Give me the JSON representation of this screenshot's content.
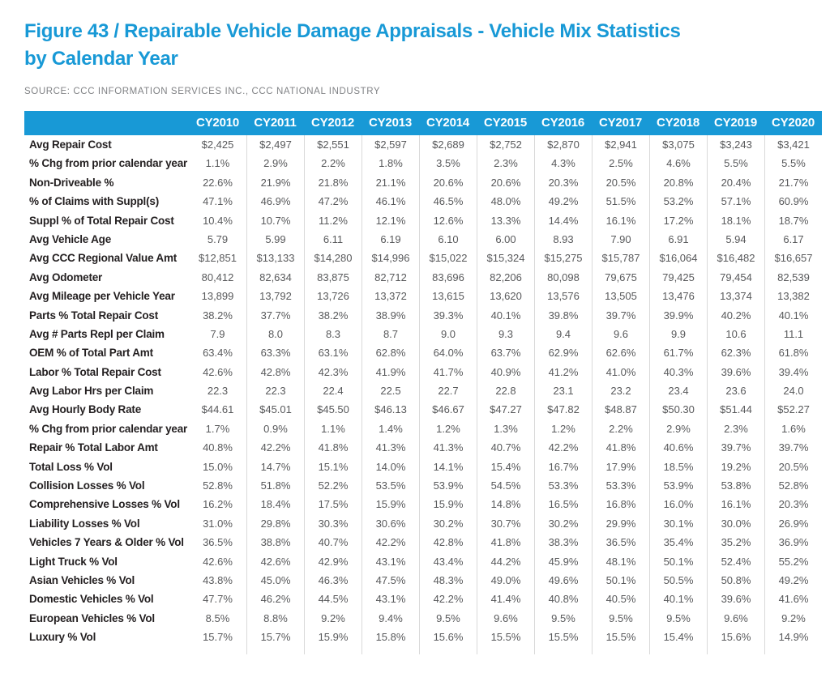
{
  "figure": {
    "title_line1": "Figure 43 / Repairable Vehicle Damage Appraisals - Vehicle Mix Statistics",
    "title_line2": "by Calendar Year",
    "source": "SOURCE: CCC INFORMATION SERVICES INC., CCC NATIONAL INDUSTRY"
  },
  "colors": {
    "accent_blue": "#1899D6",
    "label_text": "#231F20",
    "value_text": "#58595B",
    "divider": "#D9D9D9"
  },
  "chart_data": {
    "type": "table",
    "title": "Figure 43 / Repairable Vehicle Damage Appraisals - Vehicle Mix Statistics by Calendar Year",
    "source": "SOURCE: CCC INFORMATION SERVICES INC., CCC NATIONAL INDUSTRY",
    "columns": [
      "CY2010",
      "CY2011",
      "CY2012",
      "CY2013",
      "CY2014",
      "CY2015",
      "CY2016",
      "CY2017",
      "CY2018",
      "CY2019",
      "CY2020"
    ],
    "rows": [
      {
        "label": "Avg Repair Cost",
        "values": [
          "$2,425",
          "$2,497",
          "$2,551",
          "$2,597",
          "$2,689",
          "$2,752",
          "$2,870",
          "$2,941",
          "$3,075",
          "$3,243",
          "$3,421"
        ]
      },
      {
        "label": "% Chg from prior calendar year",
        "values": [
          "1.1%",
          "2.9%",
          "2.2%",
          "1.8%",
          "3.5%",
          "2.3%",
          "4.3%",
          "2.5%",
          "4.6%",
          "5.5%",
          "5.5%"
        ]
      },
      {
        "label": "Non-Driveable %",
        "values": [
          "22.6%",
          "21.9%",
          "21.8%",
          "21.1%",
          "20.6%",
          "20.6%",
          "20.3%",
          "20.5%",
          "20.8%",
          "20.4%",
          "21.7%"
        ]
      },
      {
        "label": "% of Claims with Suppl(s)",
        "values": [
          "47.1%",
          "46.9%",
          "47.2%",
          "46.1%",
          "46.5%",
          "48.0%",
          "49.2%",
          "51.5%",
          "53.2%",
          "57.1%",
          "60.9%"
        ]
      },
      {
        "label": "Suppl % of Total Repair Cost",
        "values": [
          "10.4%",
          "10.7%",
          "11.2%",
          "12.1%",
          "12.6%",
          "13.3%",
          "14.4%",
          "16.1%",
          "17.2%",
          "18.1%",
          "18.7%"
        ]
      },
      {
        "label": "Avg Vehicle Age",
        "values": [
          "5.79",
          "5.99",
          "6.11",
          "6.19",
          "6.10",
          "6.00",
          "8.93",
          "7.90",
          "6.91",
          "5.94",
          "6.17"
        ]
      },
      {
        "label": "Avg CCC Regional Value Amt",
        "values": [
          "$12,851",
          "$13,133",
          "$14,280",
          "$14,996",
          "$15,022",
          "$15,324",
          "$15,275",
          "$15,787",
          "$16,064",
          "$16,482",
          "$16,657"
        ]
      },
      {
        "label": "Avg Odometer",
        "values": [
          "80,412",
          "82,634",
          "83,875",
          "82,712",
          "83,696",
          "82,206",
          "80,098",
          "79,675",
          "79,425",
          "79,454",
          "82,539"
        ]
      },
      {
        "label": "Avg Mileage per Vehicle Year",
        "values": [
          "13,899",
          "13,792",
          "13,726",
          "13,372",
          "13,615",
          "13,620",
          "13,576",
          "13,505",
          "13,476",
          "13,374",
          "13,382"
        ]
      },
      {
        "label": "Parts % Total Repair Cost",
        "values": [
          "38.2%",
          "37.7%",
          "38.2%",
          "38.9%",
          "39.3%",
          "40.1%",
          "39.8%",
          "39.7%",
          "39.9%",
          "40.2%",
          "40.1%"
        ]
      },
      {
        "label": "Avg # Parts Repl per Claim",
        "values": [
          "7.9",
          "8.0",
          "8.3",
          "8.7",
          "9.0",
          "9.3",
          "9.4",
          "9.6",
          "9.9",
          "10.6",
          "11.1"
        ]
      },
      {
        "label": "OEM % of Total Part Amt",
        "values": [
          "63.4%",
          "63.3%",
          "63.1%",
          "62.8%",
          "64.0%",
          "63.7%",
          "62.9%",
          "62.6%",
          "61.7%",
          "62.3%",
          "61.8%"
        ]
      },
      {
        "label": "Labor % Total Repair Cost",
        "values": [
          "42.6%",
          "42.8%",
          "42.3%",
          "41.9%",
          "41.7%",
          "40.9%",
          "41.2%",
          "41.0%",
          "40.3%",
          "39.6%",
          "39.4%"
        ]
      },
      {
        "label": "Avg Labor Hrs per Claim",
        "values": [
          "22.3",
          "22.3",
          "22.4",
          "22.5",
          "22.7",
          "22.8",
          "23.1",
          "23.2",
          "23.4",
          "23.6",
          "24.0"
        ]
      },
      {
        "label": "Avg Hourly Body Rate",
        "values": [
          "$44.61",
          "$45.01",
          "$45.50",
          "$46.13",
          "$46.67",
          "$47.27",
          "$47.82",
          "$48.87",
          "$50.30",
          "$51.44",
          "$52.27"
        ]
      },
      {
        "label": "% Chg from prior calendar year",
        "values": [
          "1.7%",
          "0.9%",
          "1.1%",
          "1.4%",
          "1.2%",
          "1.3%",
          "1.2%",
          "2.2%",
          "2.9%",
          "2.3%",
          "1.6%"
        ]
      },
      {
        "label": "Repair % Total Labor Amt",
        "values": [
          "40.8%",
          "42.2%",
          "41.8%",
          "41.3%",
          "41.3%",
          "40.7%",
          "42.2%",
          "41.8%",
          "40.6%",
          "39.7%",
          "39.7%"
        ]
      },
      {
        "label": "Total Loss % Vol",
        "values": [
          "15.0%",
          "14.7%",
          "15.1%",
          "14.0%",
          "14.1%",
          "15.4%",
          "16.7%",
          "17.9%",
          "18.5%",
          "19.2%",
          "20.5%"
        ]
      },
      {
        "label": "Collision Losses % Vol",
        "values": [
          "52.8%",
          "51.8%",
          "52.2%",
          "53.5%",
          "53.9%",
          "54.5%",
          "53.3%",
          "53.3%",
          "53.9%",
          "53.8%",
          "52.8%"
        ]
      },
      {
        "label": "Comprehensive Losses % Vol",
        "values": [
          "16.2%",
          "18.4%",
          "17.5%",
          "15.9%",
          "15.9%",
          "14.8%",
          "16.5%",
          "16.8%",
          "16.0%",
          "16.1%",
          "20.3%"
        ]
      },
      {
        "label": "Liability Losses % Vol",
        "values": [
          "31.0%",
          "29.8%",
          "30.3%",
          "30.6%",
          "30.2%",
          "30.7%",
          "30.2%",
          "29.9%",
          "30.1%",
          "30.0%",
          "26.9%"
        ]
      },
      {
        "label": "Vehicles 7 Years & Older % Vol",
        "values": [
          "36.5%",
          "38.8%",
          "40.7%",
          "42.2%",
          "42.8%",
          "41.8%",
          "38.3%",
          "36.5%",
          "35.4%",
          "35.2%",
          "36.9%"
        ]
      },
      {
        "label": "Light Truck % Vol",
        "values": [
          "42.6%",
          "42.6%",
          "42.9%",
          "43.1%",
          "43.4%",
          "44.2%",
          "45.9%",
          "48.1%",
          "50.1%",
          "52.4%",
          "55.2%"
        ]
      },
      {
        "label": "Asian Vehicles % Vol",
        "values": [
          "43.8%",
          "45.0%",
          "46.3%",
          "47.5%",
          "48.3%",
          "49.0%",
          "49.6%",
          "50.1%",
          "50.5%",
          "50.8%",
          "49.2%"
        ]
      },
      {
        "label": "Domestic Vehicles % Vol",
        "values": [
          "47.7%",
          "46.2%",
          "44.5%",
          "43.1%",
          "42.2%",
          "41.4%",
          "40.8%",
          "40.5%",
          "40.1%",
          "39.6%",
          "41.6%"
        ]
      },
      {
        "label": "European Vehicles % Vol",
        "values": [
          "8.5%",
          "8.8%",
          "9.2%",
          "9.4%",
          "9.5%",
          "9.6%",
          "9.5%",
          "9.5%",
          "9.5%",
          "9.6%",
          "9.2%"
        ]
      },
      {
        "label": "Luxury % Vol",
        "values": [
          "15.7%",
          "15.7%",
          "15.9%",
          "15.8%",
          "15.6%",
          "15.5%",
          "15.5%",
          "15.5%",
          "15.4%",
          "15.6%",
          "14.9%"
        ]
      }
    ]
  }
}
